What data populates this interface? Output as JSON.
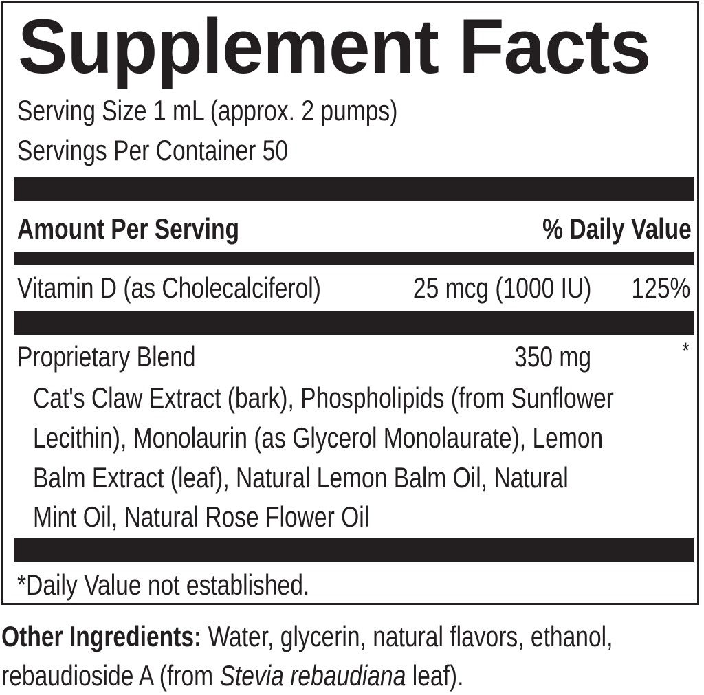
{
  "title": "Supplement Facts",
  "serving_size": "Serving Size 1 mL (approx. 2 pumps)",
  "servings_per_container": "Servings Per Container 50",
  "header": {
    "amount": "Amount Per Serving",
    "daily_value": "% Daily Value"
  },
  "rows": [
    {
      "name": "Vitamin D (as Cholecalciferol)",
      "amount": "25 mcg (1000 IU)",
      "dv": "125%"
    },
    {
      "name": "Proprietary Blend",
      "amount": "350 mg",
      "dv": "*"
    }
  ],
  "blend_lines": [
    "Cat's Claw Extract (bark), Phospholipids (from Sunflower",
    "Lecithin), Monolaurin (as Glycerol Monolaurate), Lemon",
    "Balm Extract (leaf), Natural Lemon Balm Oil, Natural",
    "Mint Oil, Natural Rose Flower Oil"
  ],
  "footnote": "*Daily Value not established.",
  "other": {
    "label": "Other Ingredients:",
    "text1": " Water, glycerin, natural flavors, ethanol,",
    "text2a": "rebaudioside A (from ",
    "text2_italic": "Stevia rebaudiana",
    "text2b": " leaf)."
  }
}
